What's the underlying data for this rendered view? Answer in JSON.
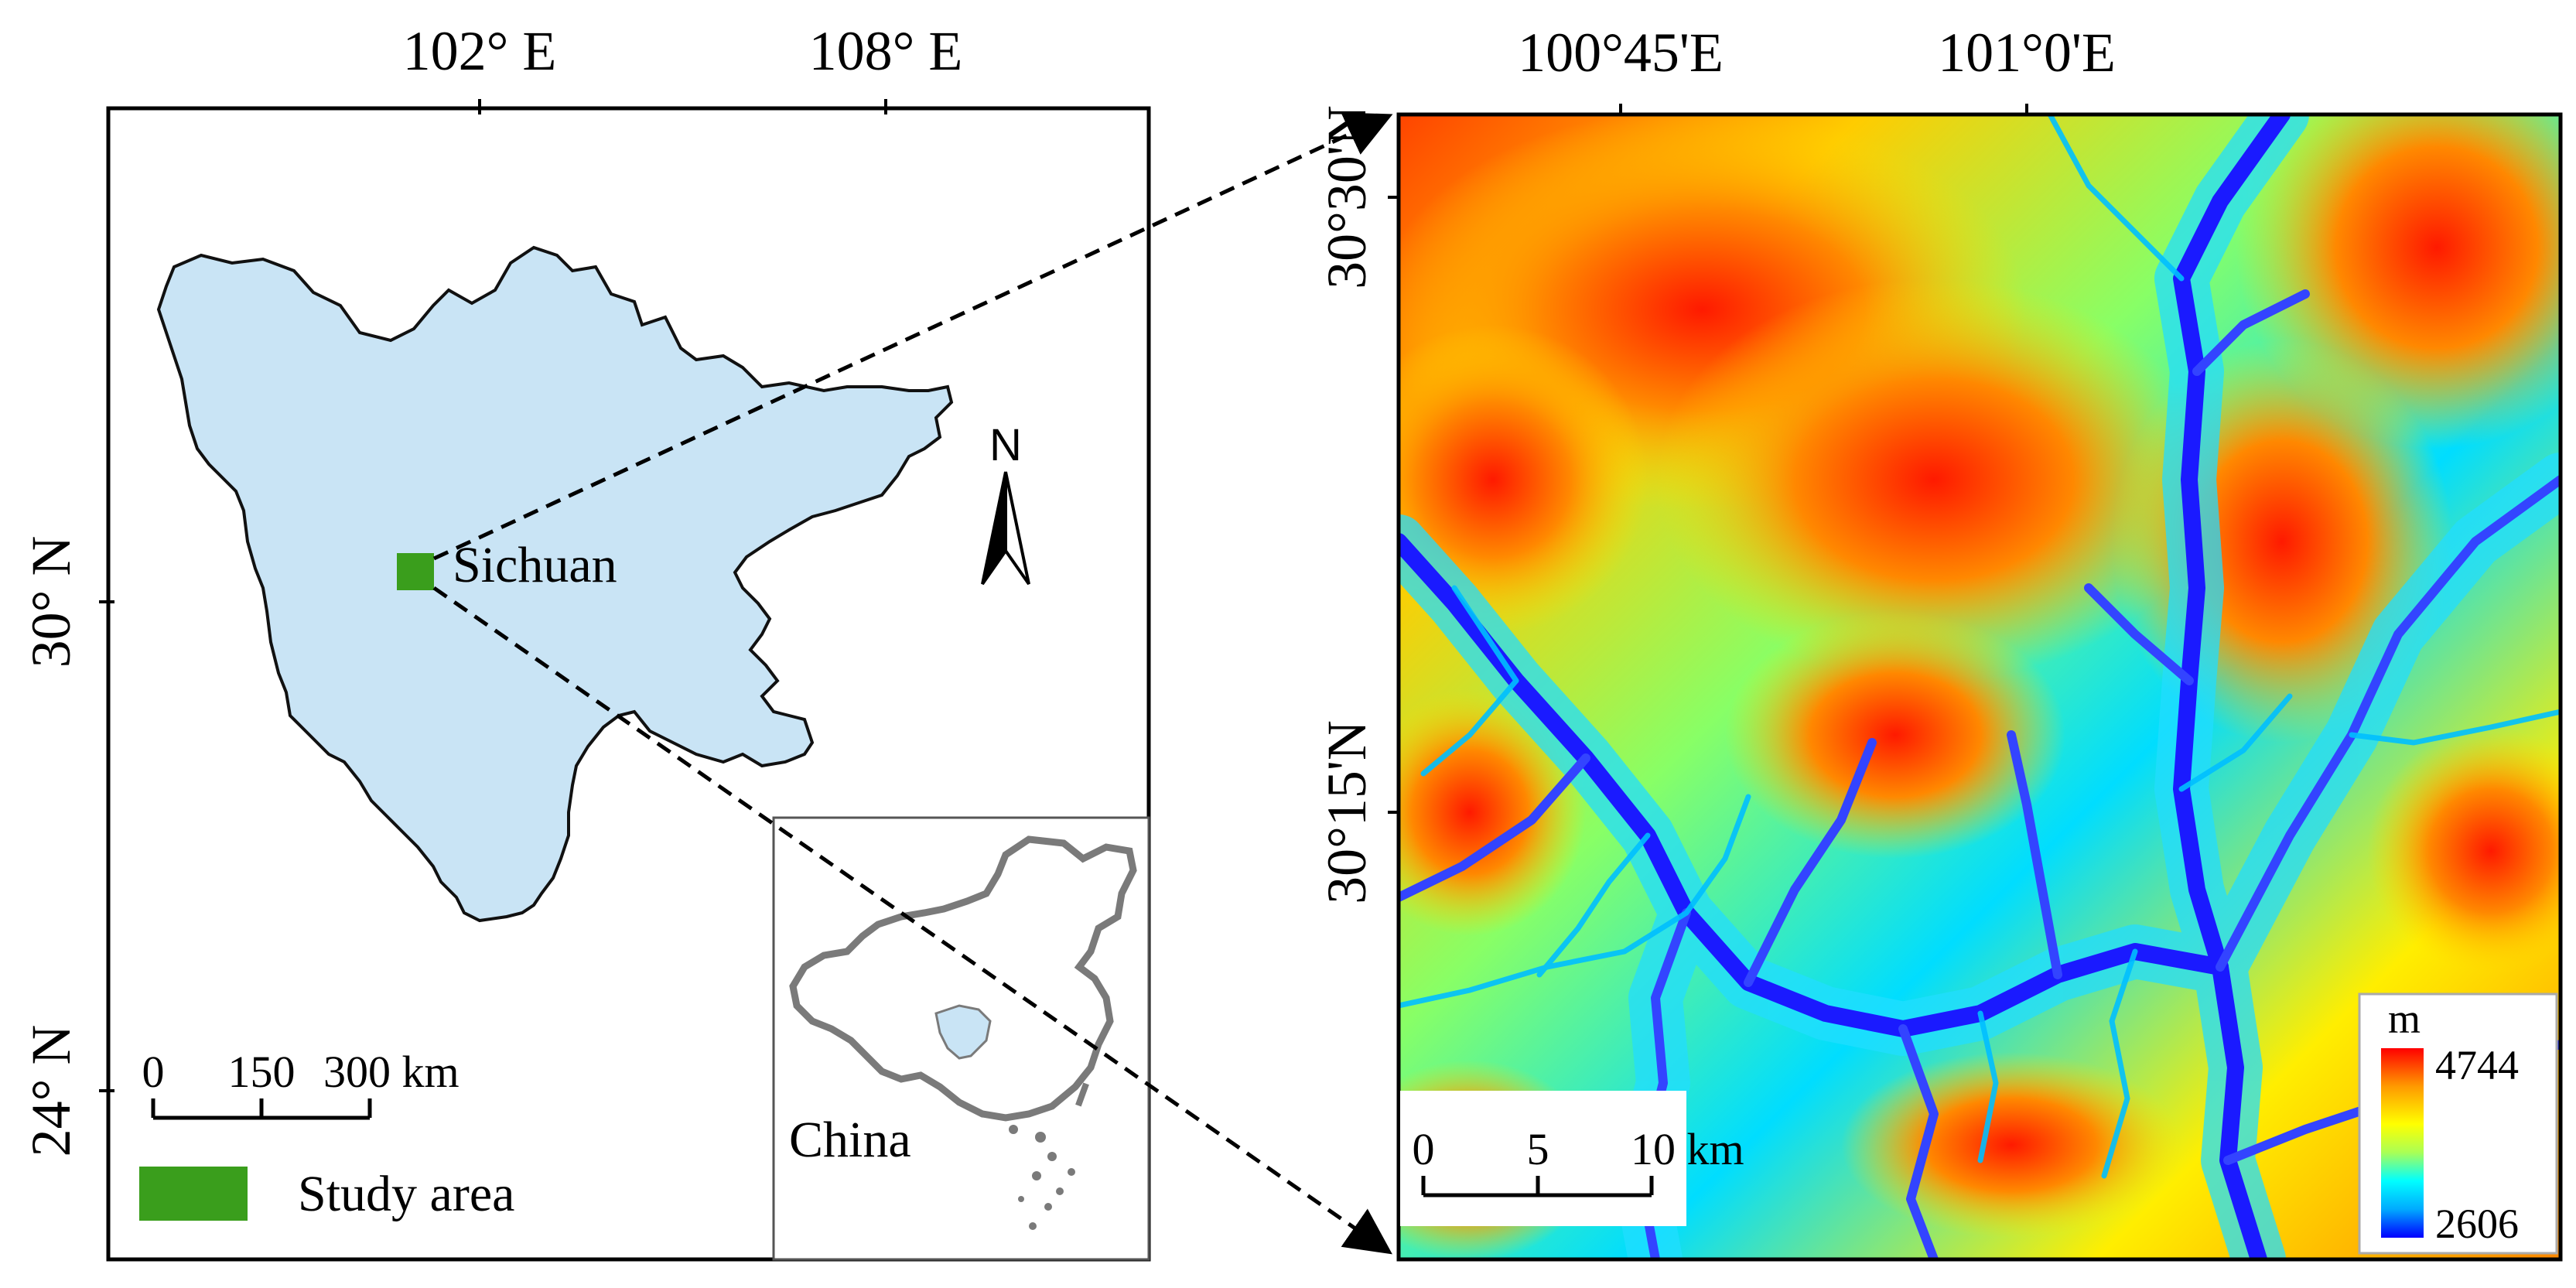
{
  "locator_map": {
    "top_longitude_labels": [
      "102° E",
      "108° E"
    ],
    "left_latitude_labels": [
      "30° N",
      "24° N"
    ],
    "province_label": "Sichuan",
    "inset_label": "China",
    "scale_bar": {
      "ticks": [
        "0",
        "150",
        "300 km"
      ]
    },
    "legend": {
      "study_area_label": "Study area"
    },
    "north_arrow": {
      "label": "N"
    }
  },
  "dem_map": {
    "top_longitude_labels": [
      "100°45'E",
      "101°0'E"
    ],
    "left_latitude_labels": [
      "30°30'N",
      "30°15'N"
    ],
    "scale_bar": {
      "ticks": [
        "0",
        "5",
        "10 km"
      ]
    },
    "elevation_legend": {
      "unit": "m",
      "max": "4744",
      "min": "2606",
      "colors": [
        "#0000ff",
        "#00aaff",
        "#00ffff",
        "#aaff55",
        "#ffff00",
        "#ff9900",
        "#ff0000"
      ]
    }
  },
  "colors": {
    "province_fill": "#c9e4f5",
    "study_area": "#3a9e1c",
    "china_outline": "#7a7a7a",
    "river": "#1a1aff"
  }
}
